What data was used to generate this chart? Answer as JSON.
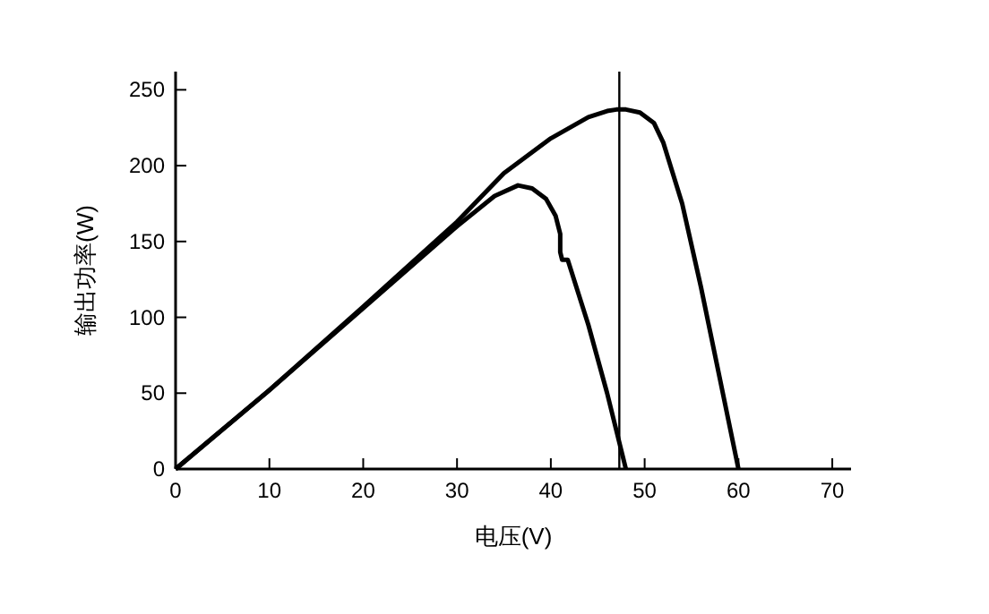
{
  "chart_data": {
    "type": "line",
    "xlabel": "电压(V)",
    "ylabel": "输出功率(W)",
    "xlim": [
      0,
      72
    ],
    "ylim": [
      0,
      262
    ],
    "xticks": [
      0,
      10,
      20,
      30,
      40,
      50,
      60,
      70
    ],
    "yticks": [
      0,
      50,
      100,
      150,
      200,
      250
    ],
    "grid": false,
    "marker": "none",
    "line_style": "solid",
    "series": [
      {
        "color": "#000000",
        "x": [
          0,
          10,
          20,
          30,
          35,
          40,
          44,
          46,
          47,
          48,
          49.5,
          51,
          52,
          54,
          56,
          58,
          60
        ],
        "values": [
          0,
          52,
          107,
          163,
          195,
          218,
          232,
          236,
          237,
          237,
          235,
          228,
          215,
          175,
          120,
          60,
          0
        ]
      },
      {
        "color": "#000000",
        "x": [
          0,
          10,
          20,
          30,
          34,
          36.5,
          38,
          39.5,
          40.5,
          41,
          41,
          41.2,
          41.8,
          44,
          46,
          48
        ],
        "values": [
          0,
          52,
          106,
          160,
          180,
          187,
          185,
          178,
          167,
          155,
          143,
          138,
          138,
          95,
          50,
          0
        ]
      }
    ],
    "ref_lines": [
      {
        "axis": "x",
        "value": 47.3,
        "color": "#000000"
      }
    ]
  }
}
